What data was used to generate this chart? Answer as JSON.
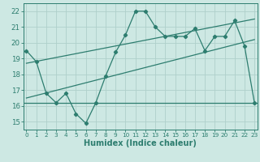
{
  "x": [
    0,
    1,
    2,
    3,
    4,
    5,
    6,
    7,
    8,
    9,
    10,
    11,
    12,
    13,
    14,
    15,
    16,
    17,
    18,
    19,
    20,
    21,
    22,
    23
  ],
  "y": [
    19.5,
    18.8,
    16.8,
    16.2,
    16.8,
    15.5,
    14.9,
    16.2,
    17.9,
    19.4,
    20.5,
    22.0,
    22.0,
    21.0,
    20.4,
    20.4,
    20.4,
    20.9,
    19.5,
    20.4,
    20.4,
    21.4,
    19.8,
    16.2
  ],
  "hline_y": 16.2,
  "trend1_x": [
    0,
    23
  ],
  "trend1_y": [
    16.5,
    20.2
  ],
  "trend2_x": [
    0,
    23
  ],
  "trend2_y": [
    18.7,
    21.5
  ],
  "xlim": [
    -0.3,
    23.3
  ],
  "ylim": [
    14.5,
    22.5
  ],
  "yticks": [
    15,
    16,
    17,
    18,
    19,
    20,
    21,
    22
  ],
  "xticks": [
    0,
    1,
    2,
    3,
    4,
    5,
    6,
    7,
    8,
    9,
    10,
    11,
    12,
    13,
    14,
    15,
    16,
    17,
    18,
    19,
    20,
    21,
    22,
    23
  ],
  "xlabel": "Humidex (Indice chaleur)",
  "line_color": "#2d7d6f",
  "bg_color": "#cde8e3",
  "grid_color": "#afd0ca",
  "x_tick_fontsize": 5.2,
  "y_tick_fontsize": 6.2,
  "xlabel_fontsize": 7.0
}
